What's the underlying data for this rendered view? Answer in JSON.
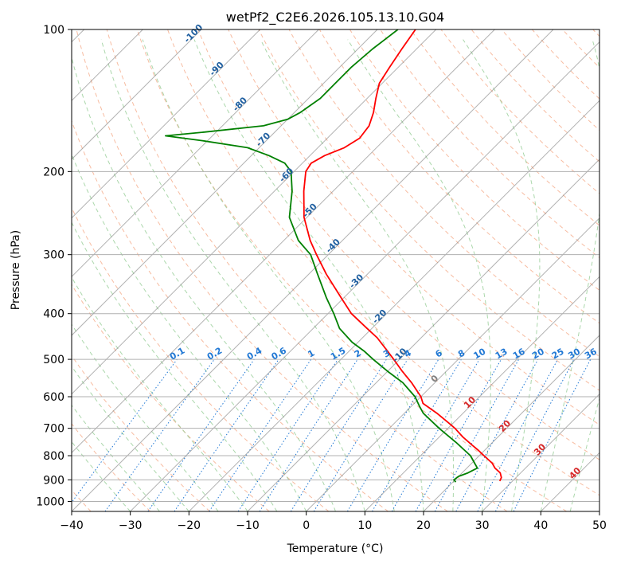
{
  "chart_data": {
    "type": "line",
    "title": "wetPf2_C2E6.2026.105.13.10.G04",
    "xlabel": "Temperature (°C)",
    "ylabel": "Pressure (hPa)",
    "xlim": [
      -40,
      50
    ],
    "ylim": [
      1050,
      100
    ],
    "y_scale": "log",
    "grid": true,
    "x_ticks": [
      -40,
      -30,
      -20,
      -10,
      0,
      10,
      20,
      30,
      40,
      50
    ],
    "y_ticks": [
      100,
      200,
      300,
      400,
      500,
      600,
      700,
      800,
      900,
      1000
    ],
    "skew_factor": 1.0,
    "series": [
      {
        "color": "#ff0000",
        "points": [
          [
            100,
            -63.5
          ],
          [
            110,
            -62.5
          ],
          [
            120,
            -61.5
          ],
          [
            130,
            -60.5
          ],
          [
            140,
            -58.5
          ],
          [
            150,
            -56.5
          ],
          [
            160,
            -55.0
          ],
          [
            170,
            -54.5
          ],
          [
            178,
            -55.5
          ],
          [
            185,
            -57.5
          ],
          [
            192,
            -58.5
          ],
          [
            200,
            -58.0
          ],
          [
            220,
            -55.0
          ],
          [
            250,
            -50.5
          ],
          [
            280,
            -45.5
          ],
          [
            300,
            -42.0
          ],
          [
            330,
            -37.0
          ],
          [
            370,
            -30.5
          ],
          [
            400,
            -26.0
          ],
          [
            430,
            -20.8
          ],
          [
            450,
            -17.5
          ],
          [
            480,
            -13.5
          ],
          [
            500,
            -11.0
          ],
          [
            530,
            -7.5
          ],
          [
            560,
            -4.0
          ],
          [
            600,
            0.0
          ],
          [
            620,
            1.5
          ],
          [
            650,
            5.5
          ],
          [
            680,
            9.0
          ],
          [
            700,
            11.2
          ],
          [
            730,
            14.0
          ],
          [
            760,
            17.0
          ],
          [
            780,
            19.0
          ],
          [
            800,
            20.8
          ],
          [
            830,
            23.5
          ],
          [
            850,
            24.8
          ],
          [
            870,
            26.5
          ],
          [
            890,
            27.5
          ],
          [
            905,
            27.8
          ]
        ]
      },
      {
        "color": "#008000",
        "points": [
          [
            100,
            -66.5
          ],
          [
            105,
            -67.0
          ],
          [
            110,
            -67.5
          ],
          [
            120,
            -68.0
          ],
          [
            130,
            -68.0
          ],
          [
            140,
            -68.0
          ],
          [
            150,
            -69.0
          ],
          [
            155,
            -70.0
          ],
          [
            160,
            -73.0
          ],
          [
            165,
            -82.0
          ],
          [
            168,
            -88.0
          ],
          [
            172,
            -81.0
          ],
          [
            178,
            -72.0
          ],
          [
            185,
            -67.0
          ],
          [
            192,
            -63.0
          ],
          [
            200,
            -60.5
          ],
          [
            220,
            -57.0
          ],
          [
            250,
            -53.0
          ],
          [
            280,
            -47.5
          ],
          [
            300,
            -43.0
          ],
          [
            330,
            -38.5
          ],
          [
            370,
            -33.0
          ],
          [
            400,
            -29.0
          ],
          [
            430,
            -25.5
          ],
          [
            460,
            -21.0
          ],
          [
            480,
            -17.5
          ],
          [
            500,
            -14.5
          ],
          [
            530,
            -10.0
          ],
          [
            560,
            -5.5
          ],
          [
            600,
            -1.0
          ],
          [
            630,
            1.5
          ],
          [
            650,
            3.2
          ],
          [
            700,
            8.5
          ],
          [
            750,
            13.8
          ],
          [
            800,
            18.5
          ],
          [
            830,
            20.5
          ],
          [
            850,
            21.8
          ],
          [
            870,
            21.0
          ],
          [
            885,
            20.0
          ],
          [
            900,
            19.8
          ],
          [
            910,
            20.5
          ]
        ]
      }
    ],
    "isotherm_labels": [
      "-100",
      "-90",
      "-80",
      "-70",
      "-60",
      "-50",
      "-40",
      "-30",
      "-20",
      "-10",
      "0",
      "10",
      "20",
      "30",
      "40"
    ],
    "mixing_ratio_labels": [
      "0.1",
      "0.2",
      "0.4",
      "0.6",
      "1",
      "1.5",
      "2",
      "3",
      "4",
      "6",
      "8",
      "10",
      "13",
      "16",
      "20",
      "25",
      "30",
      "36"
    ],
    "colors": {
      "dry_adiabat": "#f4a582",
      "moist_adiabat": "#8fca8f",
      "mixing_ratio": "#1f77d4",
      "isotherm": "#7f7f7f",
      "isobar": "#b0b0b0",
      "cold_label": "#1f5fa0",
      "warm_label": "#d62728"
    }
  }
}
